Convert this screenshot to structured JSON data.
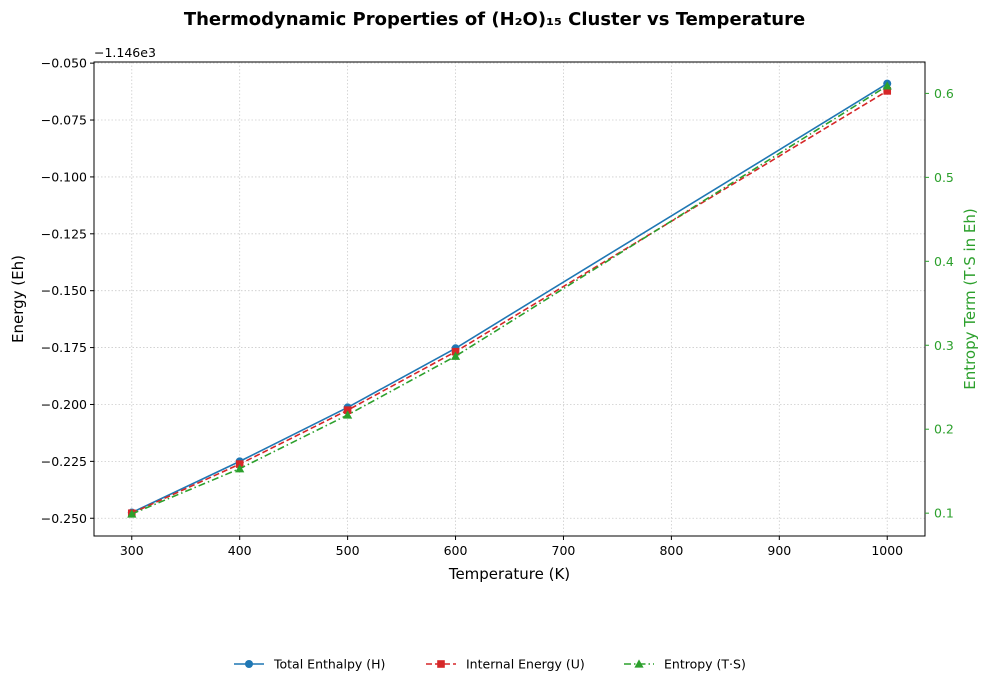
{
  "chart_data": {
    "type": "line",
    "title": "Thermodynamic Properties of (H₂O)₁₅ Cluster vs Temperature",
    "xlabel": "Temperature (K)",
    "ylabel": "Energy (Eh)",
    "y2label": "Entropy Term (T·S in Eh)",
    "offset_label": "−1.146e3",
    "x": [
      300,
      400,
      500,
      600,
      1000
    ],
    "xlim": [
      265,
      1035
    ],
    "ylim": [
      -0.2578,
      -0.0495
    ],
    "y2lim": [
      0.0728,
      0.6374
    ],
    "xticks": [
      300,
      400,
      500,
      600,
      700,
      800,
      900,
      1000
    ],
    "yticks": [
      -0.25,
      -0.225,
      -0.2,
      -0.175,
      -0.15,
      -0.125,
      -0.1,
      -0.075,
      -0.05
    ],
    "ytick_labels": [
      "−0.250",
      "−0.225",
      "−0.200",
      "−0.175",
      "−0.150",
      "−0.125",
      "−0.100",
      "−0.075",
      "−0.050"
    ],
    "y2ticks": [
      0.1,
      0.2,
      0.3,
      0.4,
      0.5,
      0.6
    ],
    "y2tick_labels": [
      "0.1",
      "0.2",
      "0.3",
      "0.4",
      "0.5",
      "0.6"
    ],
    "grid": true,
    "legend_position": "bottom-center",
    "series": [
      {
        "name": "Total Enthalpy (H)",
        "axis": "left",
        "color": "#1f77b4",
        "linestyle": "solid",
        "marker": "circle",
        "values": [
          -0.2475,
          -0.225,
          -0.2013,
          -0.1753,
          -0.059
        ]
      },
      {
        "name": "Internal Energy (U)",
        "axis": "left",
        "color": "#d62728",
        "linestyle": "dashed",
        "marker": "square",
        "values": [
          -0.2478,
          -0.2262,
          -0.2025,
          -0.1768,
          -0.0622
        ]
      },
      {
        "name": "Entropy (T·S)",
        "axis": "right",
        "color": "#2ca02c",
        "linestyle": "dashdot",
        "marker": "triangle",
        "values": [
          0.099,
          0.153,
          0.217,
          0.287,
          0.609
        ]
      }
    ]
  }
}
